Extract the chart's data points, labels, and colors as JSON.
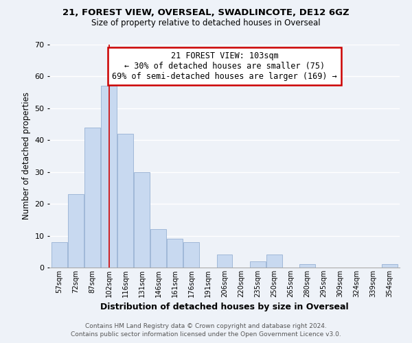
{
  "title1": "21, FOREST VIEW, OVERSEAL, SWADLINCOTE, DE12 6GZ",
  "title2": "Size of property relative to detached houses in Overseal",
  "xlabel": "Distribution of detached houses by size in Overseal",
  "ylabel": "Number of detached properties",
  "bar_color": "#c8d9f0",
  "bar_edge_color": "#a0b8d8",
  "categories": [
    "57sqm",
    "72sqm",
    "87sqm",
    "102sqm",
    "116sqm",
    "131sqm",
    "146sqm",
    "161sqm",
    "176sqm",
    "191sqm",
    "206sqm",
    "220sqm",
    "235sqm",
    "250sqm",
    "265sqm",
    "280sqm",
    "295sqm",
    "309sqm",
    "324sqm",
    "339sqm",
    "354sqm"
  ],
  "values": [
    8,
    23,
    44,
    57,
    42,
    30,
    12,
    9,
    8,
    0,
    4,
    0,
    2,
    4,
    0,
    1,
    0,
    0,
    0,
    0,
    1
  ],
  "ylim": [
    0,
    70
  ],
  "yticks": [
    0,
    10,
    20,
    30,
    40,
    50,
    60,
    70
  ],
  "annotation_title": "21 FOREST VIEW: 103sqm",
  "annotation_line1": "← 30% of detached houses are smaller (75)",
  "annotation_line2": "69% of semi-detached houses are larger (169) →",
  "annotation_box_color": "#ffffff",
  "annotation_box_edge": "#cc0000",
  "property_bar_index": 3,
  "property_line_color": "#cc0000",
  "footer1": "Contains HM Land Registry data © Crown copyright and database right 2024.",
  "footer2": "Contains public sector information licensed under the Open Government Licence v3.0.",
  "background_color": "#eef2f8",
  "grid_color": "#ffffff"
}
